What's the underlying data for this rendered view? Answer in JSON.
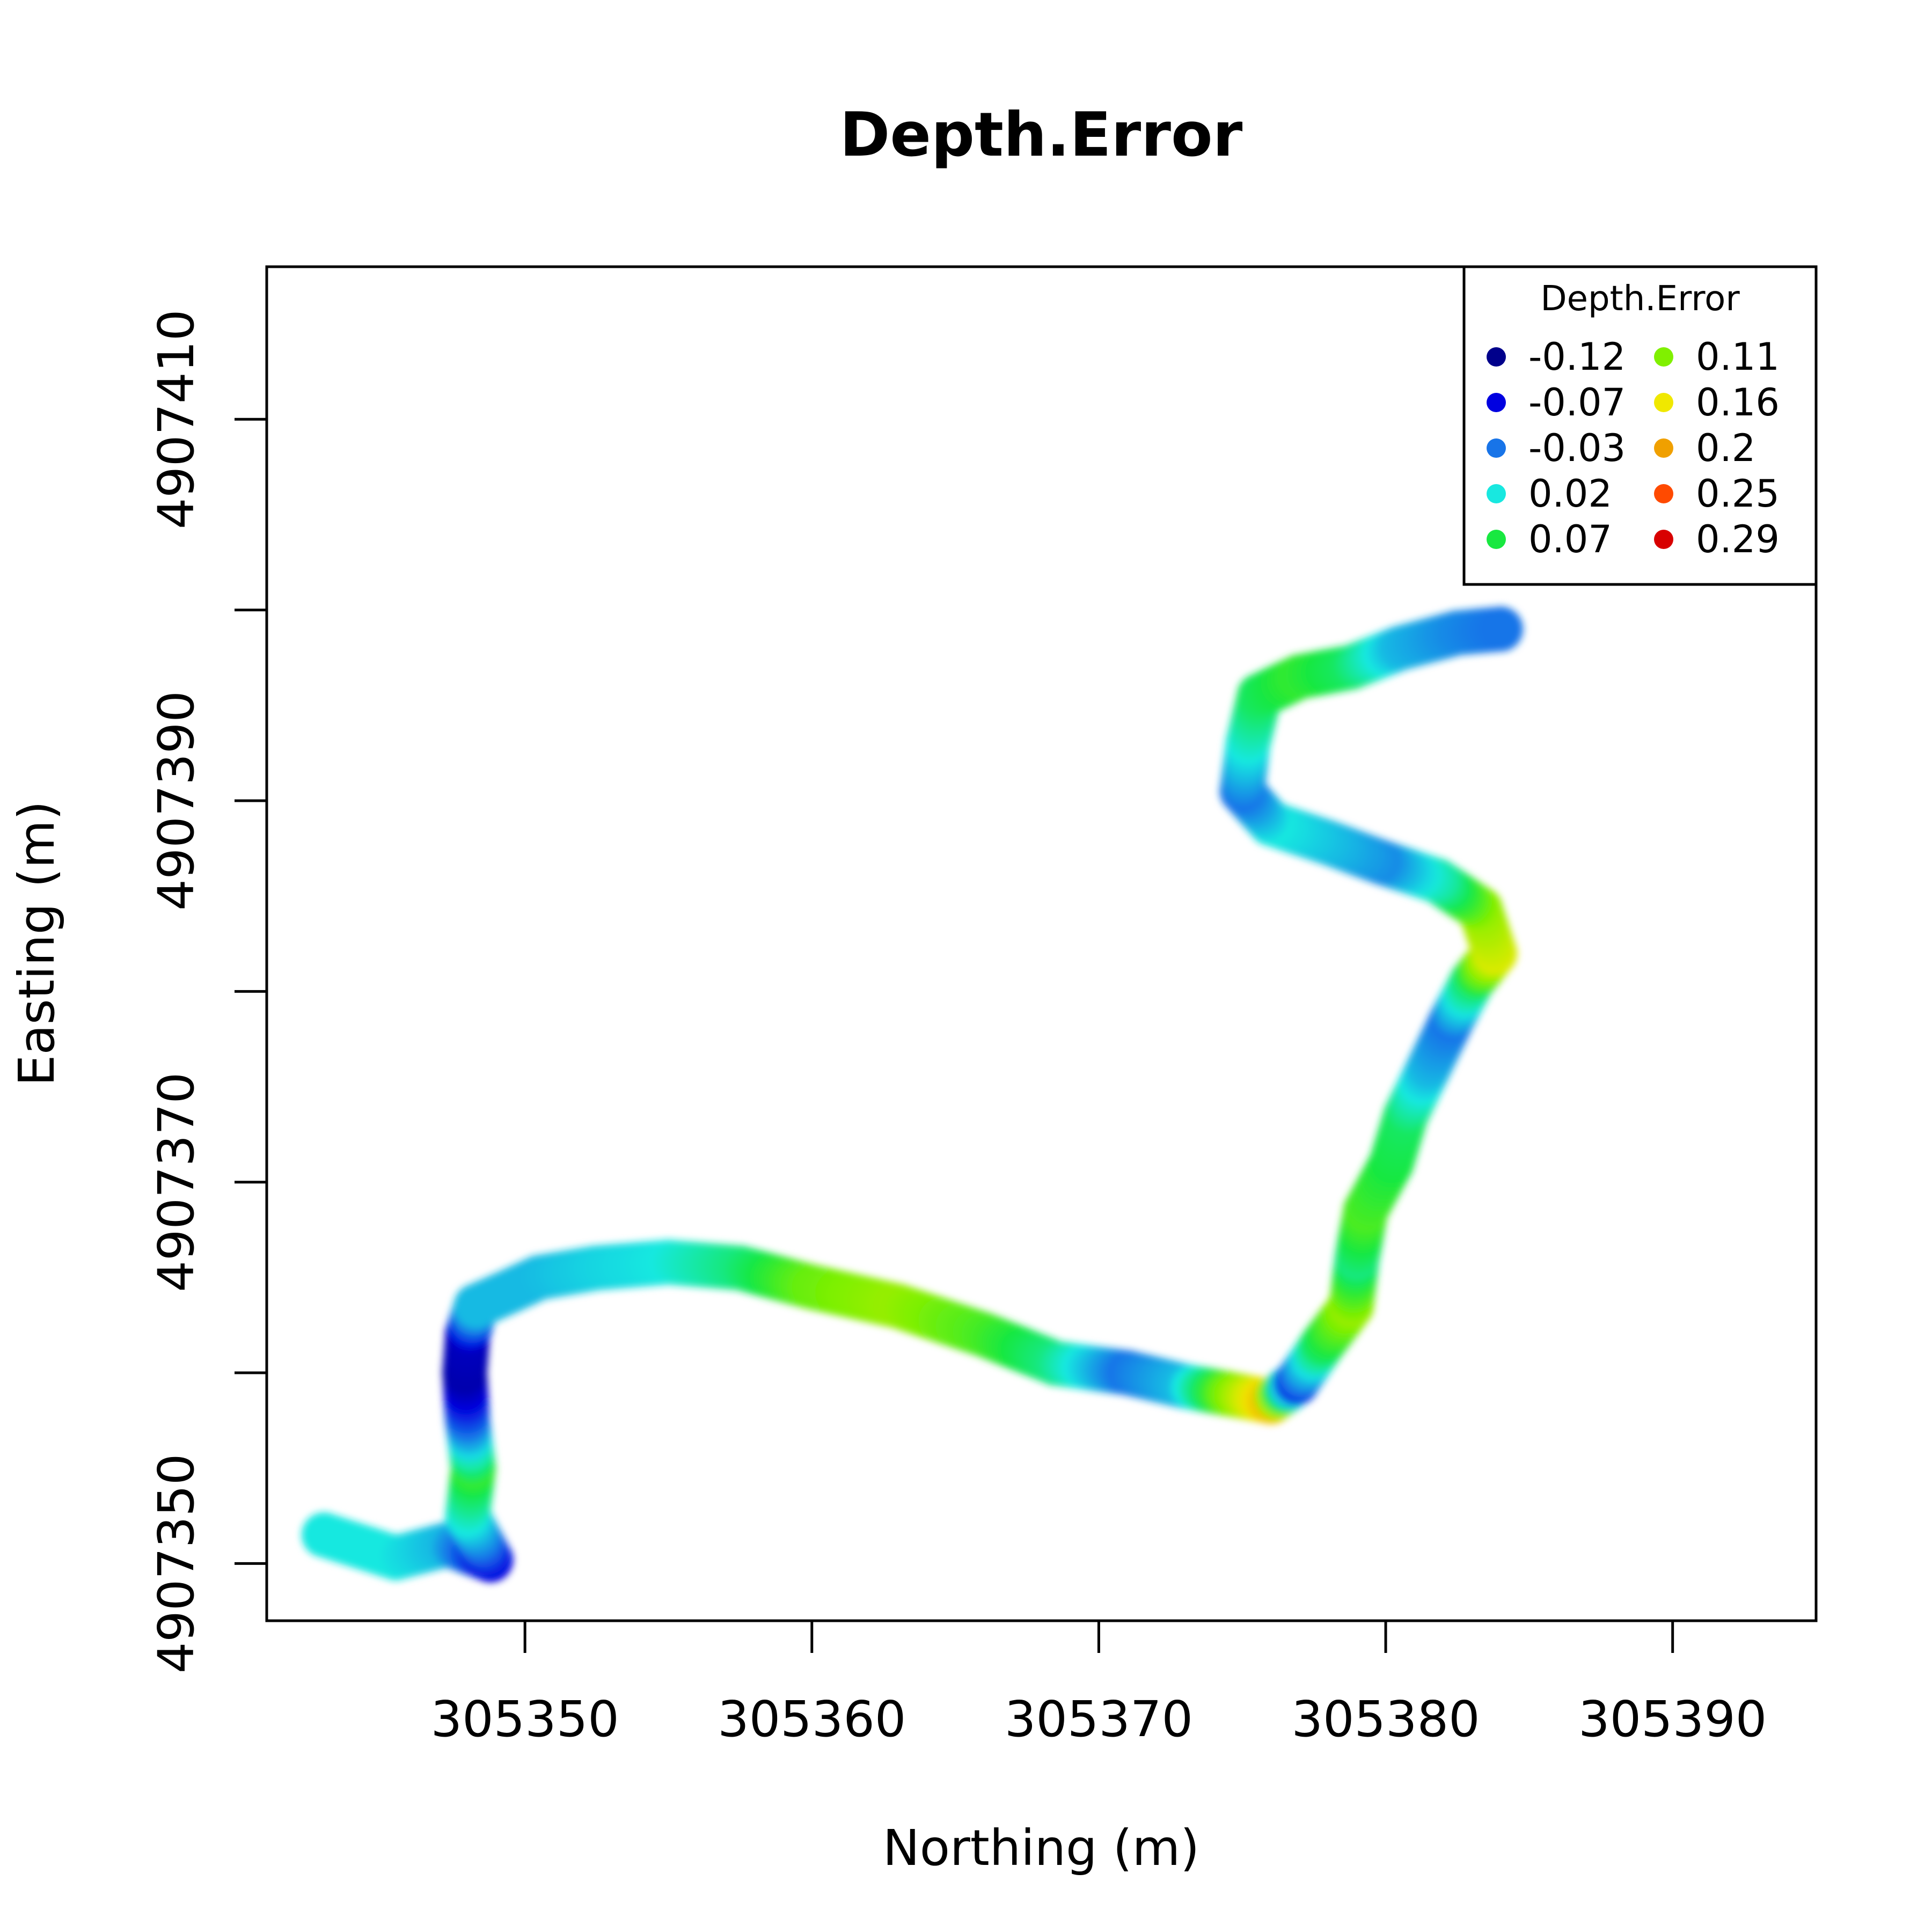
{
  "chart_data": {
    "type": "scatter",
    "title": "Depth.Error",
    "xlabel": "Northing (m)",
    "ylabel": "Easting (m)",
    "xlim": [
      305341,
      305395
    ],
    "ylim": [
      4907347,
      4907418
    ],
    "xticks": [
      305350,
      305360,
      305370,
      305380,
      305390
    ],
    "yticks": [
      4907350,
      4907360,
      4907370,
      4907380,
      4907390,
      4907400,
      4907410
    ],
    "ytick_labels": [
      "4907350",
      "4907370",
      "4907390",
      "4907410"
    ],
    "legend": {
      "title": "Depth.Error",
      "position": "top-right",
      "entries": [
        {
          "label": "-0.12",
          "color": "#00008B"
        },
        {
          "label": "-0.07",
          "color": "#0000E0"
        },
        {
          "label": "-0.03",
          "color": "#1874E8"
        },
        {
          "label": "0.02",
          "color": "#18E8E0"
        },
        {
          "label": "0.07",
          "color": "#18E840"
        },
        {
          "label": "0.11",
          "color": "#80F000"
        },
        {
          "label": "0.16",
          "color": "#F0E800"
        },
        {
          "label": "0.2",
          "color": "#F0A000"
        },
        {
          "label": "0.25",
          "color": "#FF4A00"
        },
        {
          "label": "0.29",
          "color": "#D80000"
        }
      ]
    },
    "series": [
      {
        "path": [
          {
            "x": 305343.0,
            "y": 4907351.5,
            "v": 0.02
          },
          {
            "x": 305345.5,
            "y": 4907350.3,
            "v": 0.02
          },
          {
            "x": 305347.3,
            "y": 4907351.0,
            "v": 0.0
          },
          {
            "x": 305348.8,
            "y": 4907350.2,
            "v": -0.07
          },
          {
            "x": 305348.0,
            "y": 4907352.5,
            "v": 0.02
          },
          {
            "x": 305348.2,
            "y": 4907355.0,
            "v": 0.08
          },
          {
            "x": 305348.0,
            "y": 4907357.5,
            "v": -0.03
          },
          {
            "x": 305347.9,
            "y": 4907360.0,
            "v": -0.1
          },
          {
            "x": 305348.0,
            "y": 4907362.0,
            "v": -0.09
          },
          {
            "x": 305348.3,
            "y": 4907363.5,
            "v": 0.0
          },
          {
            "x": 305349.5,
            "y": 4907364.3,
            "v": 0.0
          },
          {
            "x": 305350.5,
            "y": 4907365.0,
            "v": 0.0
          },
          {
            "x": 305352.5,
            "y": 4907365.5,
            "v": 0.01
          },
          {
            "x": 305355.0,
            "y": 4907365.8,
            "v": 0.02
          },
          {
            "x": 305357.5,
            "y": 4907365.5,
            "v": 0.05
          },
          {
            "x": 305360.0,
            "y": 4907364.5,
            "v": 0.1
          },
          {
            "x": 305363.0,
            "y": 4907363.5,
            "v": 0.12
          },
          {
            "x": 305366.0,
            "y": 4907362.0,
            "v": 0.09
          },
          {
            "x": 305368.5,
            "y": 4907360.5,
            "v": 0.05
          },
          {
            "x": 305371.0,
            "y": 4907360.0,
            "v": -0.03
          },
          {
            "x": 305373.0,
            "y": 4907359.3,
            "v": 0.0
          },
          {
            "x": 305374.5,
            "y": 4907358.9,
            "v": 0.1
          },
          {
            "x": 305376.0,
            "y": 4907358.5,
            "v": 0.18
          },
          {
            "x": 305376.9,
            "y": 4907359.5,
            "v": -0.05
          },
          {
            "x": 305377.8,
            "y": 4907361.5,
            "v": 0.06
          },
          {
            "x": 305378.8,
            "y": 4907363.5,
            "v": 0.12
          },
          {
            "x": 305379.0,
            "y": 4907366.0,
            "v": 0.05
          },
          {
            "x": 305379.3,
            "y": 4907368.5,
            "v": 0.09
          },
          {
            "x": 305380.2,
            "y": 4907371.0,
            "v": 0.07
          },
          {
            "x": 305380.7,
            "y": 4907373.5,
            "v": 0.06
          },
          {
            "x": 305381.5,
            "y": 4907376.0,
            "v": 0.0
          },
          {
            "x": 305382.3,
            "y": 4907378.5,
            "v": -0.03
          },
          {
            "x": 305383.0,
            "y": 4907380.5,
            "v": 0.05
          },
          {
            "x": 305383.8,
            "y": 4907382.0,
            "v": 0.15
          },
          {
            "x": 305383.3,
            "y": 4907384.3,
            "v": 0.12
          },
          {
            "x": 305381.8,
            "y": 4907385.8,
            "v": 0.04
          },
          {
            "x": 305379.8,
            "y": 4907386.8,
            "v": -0.02
          },
          {
            "x": 305378.0,
            "y": 4907387.8,
            "v": 0.0
          },
          {
            "x": 305376.0,
            "y": 4907388.8,
            "v": 0.02
          },
          {
            "x": 305375.0,
            "y": 4907390.5,
            "v": -0.03
          },
          {
            "x": 305375.2,
            "y": 4907393.0,
            "v": 0.02
          },
          {
            "x": 305375.6,
            "y": 4907395.5,
            "v": 0.06
          },
          {
            "x": 305377.0,
            "y": 4907396.5,
            "v": 0.08
          },
          {
            "x": 305378.8,
            "y": 4907397.0,
            "v": 0.06
          },
          {
            "x": 305380.5,
            "y": 4907398.0,
            "v": 0.0
          },
          {
            "x": 305382.5,
            "y": 4907398.8,
            "v": -0.02
          },
          {
            "x": 305384.0,
            "y": 4907399.0,
            "v": -0.03
          }
        ]
      }
    ]
  }
}
